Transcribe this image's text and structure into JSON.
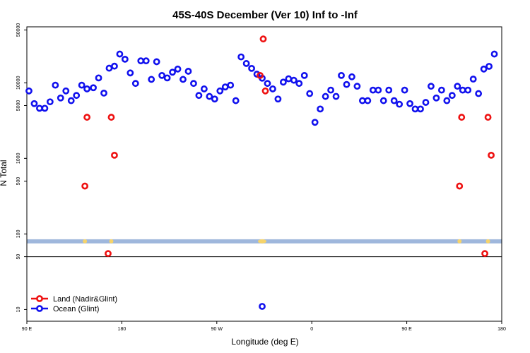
{
  "chart_data": {
    "type": "scatter",
    "title": "45S-40S December (Ver 10)   Inf to -Inf",
    "xlabel": "Longitude (deg E)",
    "ylabel": "N Total",
    "xlim": [
      90,
      540
    ],
    "y_scale": "log",
    "ylim": [
      7,
      55000
    ],
    "x_ticks": [
      {
        "value": 90,
        "label": "90 E"
      },
      {
        "value": 180,
        "label": "180"
      },
      {
        "value": 270,
        "label": "90 W"
      },
      {
        "value": 360,
        "label": "0"
      },
      {
        "value": 450,
        "label": "90 E"
      },
      {
        "value": 540,
        "label": "180"
      }
    ],
    "y_ticks": [
      {
        "value": 10,
        "label": "10"
      },
      {
        "value": 50,
        "label": "50"
      },
      {
        "value": 100,
        "label": "100"
      },
      {
        "value": 500,
        "label": "500"
      },
      {
        "value": 1000,
        "label": "1000"
      },
      {
        "value": 5000,
        "label": "5000"
      },
      {
        "value": 10000,
        "label": "10000"
      },
      {
        "value": 50000,
        "label": "50000"
      }
    ],
    "reference_line_y": 50,
    "land_strip_color": "#9fb7dc",
    "land_mask_color": "#f5d36b",
    "series": [
      {
        "name": "Land (Nadir&Glint)",
        "color": "#ee1111",
        "points": [
          [
            145,
            430
          ],
          [
            147,
            3500
          ],
          [
            167,
            55
          ],
          [
            170,
            3500
          ],
          [
            173,
            1100
          ],
          [
            311,
            12500
          ],
          [
            314,
            38000
          ],
          [
            316,
            7800
          ],
          [
            500,
            430
          ],
          [
            502,
            3500
          ],
          [
            524,
            55
          ],
          [
            527,
            3500
          ],
          [
            530,
            1100
          ]
        ]
      },
      {
        "name": "Ocean (Glint)",
        "color": "#1111ee",
        "points": [
          [
            92,
            7800
          ],
          [
            97,
            5300
          ],
          [
            102,
            4600
          ],
          [
            107,
            4600
          ],
          [
            112,
            5600
          ],
          [
            117,
            9300
          ],
          [
            122,
            6300
          ],
          [
            127,
            7800
          ],
          [
            132,
            5800
          ],
          [
            137,
            6800
          ],
          [
            142,
            9300
          ],
          [
            147,
            8300
          ],
          [
            153,
            8600
          ],
          [
            158,
            11600
          ],
          [
            163,
            7300
          ],
          [
            168,
            15600
          ],
          [
            173,
            16600
          ],
          [
            178,
            24000
          ],
          [
            183,
            20500
          ],
          [
            188,
            13500
          ],
          [
            193,
            9800
          ],
          [
            198,
            19500
          ],
          [
            203,
            19500
          ],
          [
            208,
            11100
          ],
          [
            213,
            19000
          ],
          [
            218,
            12500
          ],
          [
            223,
            11600
          ],
          [
            228,
            13800
          ],
          [
            233,
            15200
          ],
          [
            238,
            11100
          ],
          [
            243,
            14200
          ],
          [
            248,
            9800
          ],
          [
            253,
            6800
          ],
          [
            258,
            8300
          ],
          [
            263,
            6600
          ],
          [
            268,
            6100
          ],
          [
            273,
            7800
          ],
          [
            278,
            8800
          ],
          [
            283,
            9300
          ],
          [
            288,
            5800
          ],
          [
            293,
            22000
          ],
          [
            298,
            18000
          ],
          [
            303,
            15500
          ],
          [
            308,
            13000
          ],
          [
            313,
            11500
          ],
          [
            318,
            9800
          ],
          [
            323,
            8300
          ],
          [
            328,
            6100
          ],
          [
            333,
            10200
          ],
          [
            338,
            11300
          ],
          [
            343,
            10800
          ],
          [
            348,
            9800
          ],
          [
            353,
            12500
          ],
          [
            358,
            7200
          ],
          [
            363,
            3000
          ],
          [
            368,
            4500
          ],
          [
            373,
            6600
          ],
          [
            378,
            8000
          ],
          [
            383,
            6600
          ],
          [
            388,
            12500
          ],
          [
            393,
            9500
          ],
          [
            398,
            12000
          ],
          [
            403,
            9000
          ],
          [
            408,
            5800
          ],
          [
            413,
            5800
          ],
          [
            418,
            8000
          ],
          [
            423,
            8000
          ],
          [
            428,
            5800
          ],
          [
            433,
            8000
          ],
          [
            438,
            5800
          ],
          [
            443,
            5200
          ],
          [
            448,
            8000
          ],
          [
            453,
            5300
          ],
          [
            458,
            4500
          ],
          [
            463,
            4500
          ],
          [
            468,
            5500
          ],
          [
            473,
            9000
          ],
          [
            478,
            6300
          ],
          [
            483,
            8000
          ],
          [
            488,
            5800
          ],
          [
            493,
            6800
          ],
          [
            498,
            9000
          ],
          [
            503,
            8000
          ],
          [
            508,
            8000
          ],
          [
            513,
            11200
          ],
          [
            518,
            7200
          ],
          [
            523,
            15200
          ],
          [
            528,
            16500
          ],
          [
            533,
            24000
          ],
          [
            313,
            11
          ]
        ]
      }
    ],
    "legend": {
      "placement": "bottom-left"
    }
  }
}
